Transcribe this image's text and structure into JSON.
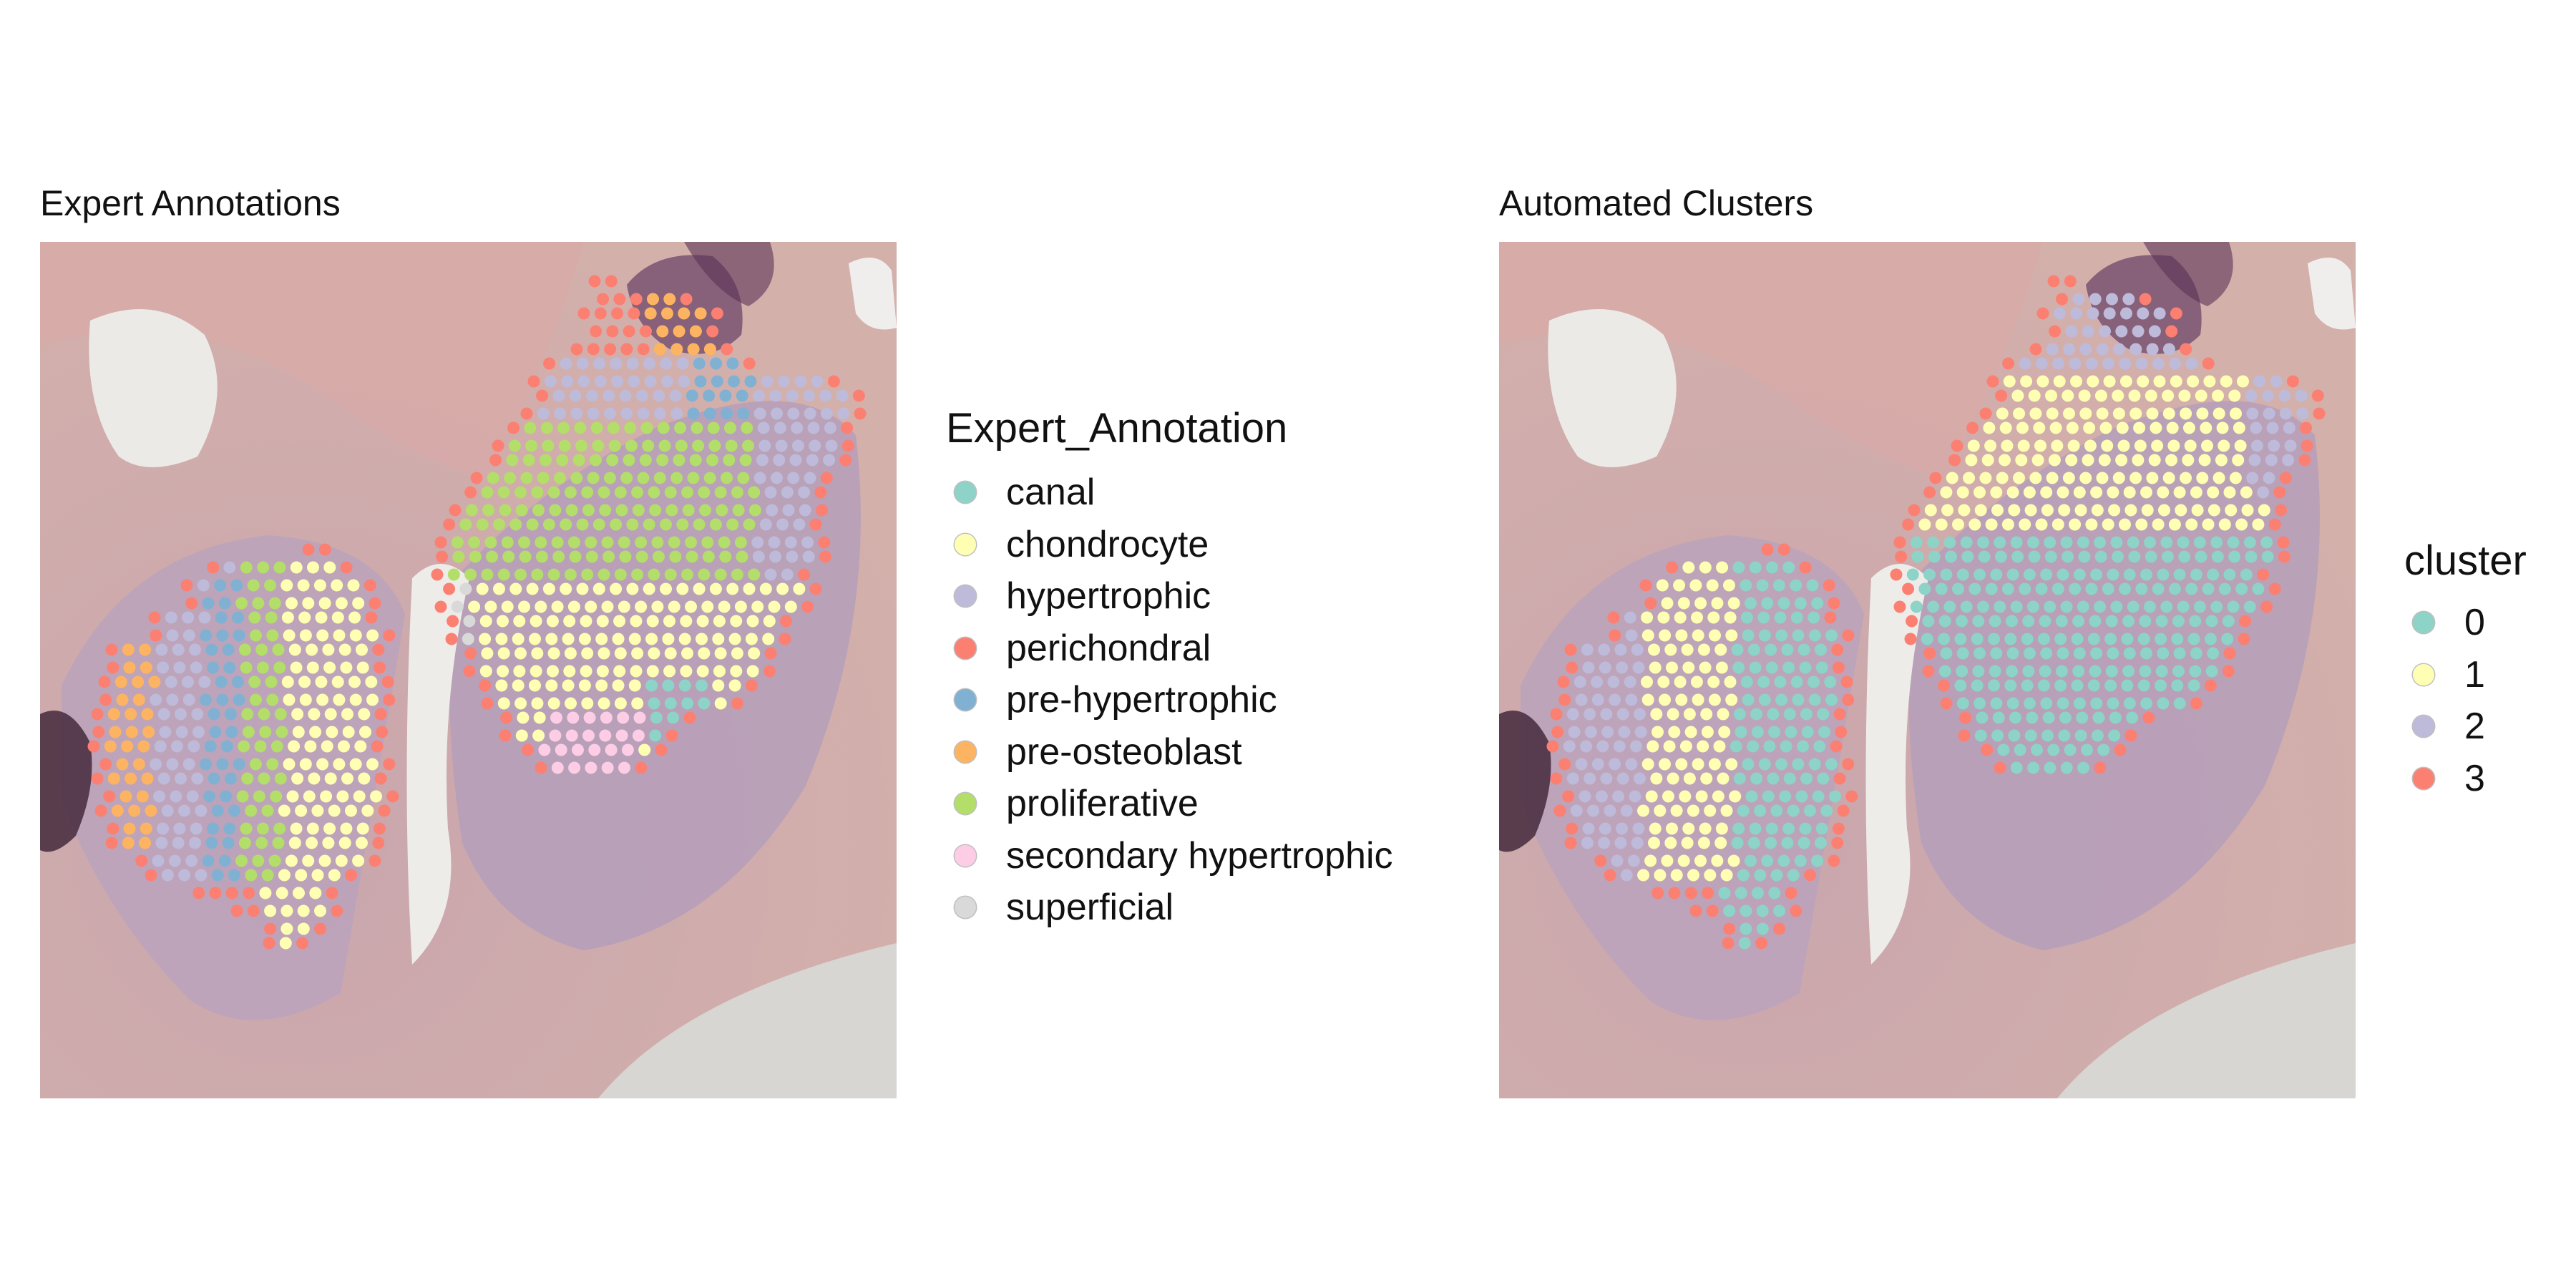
{
  "panels": [
    {
      "title": "Expert Annotations"
    },
    {
      "title": "Automated Clusters"
    }
  ],
  "legends": {
    "annotation": {
      "title": "Expert_Annotation",
      "items": [
        {
          "label": "canal",
          "color": "#8DD3C7"
        },
        {
          "label": "chondrocyte",
          "color": "#FFFFB3"
        },
        {
          "label": "hypertrophic",
          "color": "#BEBADA"
        },
        {
          "label": "perichondral",
          "color": "#FB8072"
        },
        {
          "label": "pre-hypertrophic",
          "color": "#80B1D3"
        },
        {
          "label": "pre-osteoblast",
          "color": "#FDB462"
        },
        {
          "label": "proliferative",
          "color": "#B3DE69"
        },
        {
          "label": "secondary hypertrophic",
          "color": "#FCCDE5"
        },
        {
          "label": "superficial",
          "color": "#D9D9D9"
        }
      ]
    },
    "cluster": {
      "title": "cluster",
      "items": [
        {
          "label": "0",
          "color": "#8DD3C7"
        },
        {
          "label": "1",
          "color": "#FFFFB3"
        },
        {
          "label": "2",
          "color": "#BEBADA"
        },
        {
          "label": "3",
          "color": "#FB8072"
        }
      ]
    }
  },
  "chart_data": [
    {
      "type": "scatter",
      "title": "Expert Annotations",
      "background": "H&E histology image",
      "legend_title": "Expert_Annotation",
      "categories": [
        "canal",
        "chondrocyte",
        "hypertrophic",
        "perichondral",
        "pre-hypertrophic",
        "pre-osteoblast",
        "proliferative",
        "secondary hypertrophic",
        "superficial"
      ],
      "legend_position": "right"
    },
    {
      "type": "scatter",
      "title": "Automated Clusters",
      "background": "H&E histology image",
      "legend_title": "cluster",
      "categories": [
        "0",
        "1",
        "2",
        "3"
      ],
      "legend_position": "right"
    }
  ]
}
